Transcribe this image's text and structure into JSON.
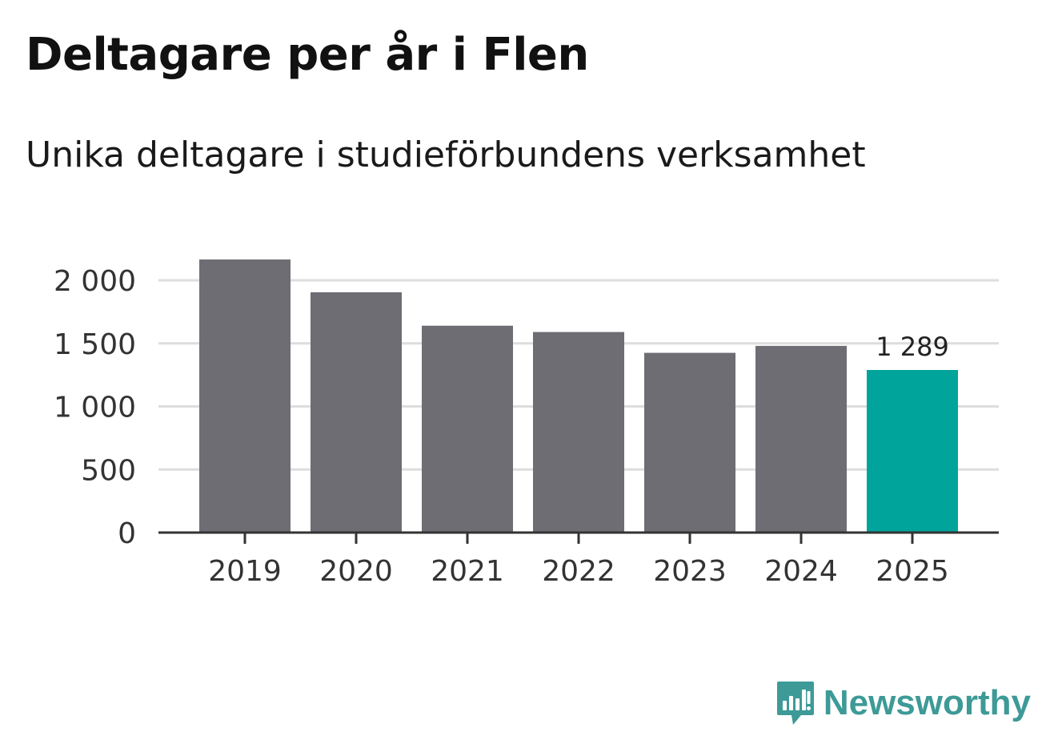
{
  "header": {
    "title": "Deltagare per år i Flen",
    "subtitle": "Unika deltagare i studieförbundens verksamhet"
  },
  "brand": {
    "name": "Newsworthy",
    "icon": "newsworthy-logo-icon"
  },
  "colors": {
    "bar_default": "#6e6d73",
    "bar_highlight": "#00a49b",
    "brand": "#3d9a97",
    "grid": "#dddddd",
    "axis": "#333333"
  },
  "chart_data": {
    "type": "bar",
    "title": "Deltagare per år i Flen",
    "subtitle": "Unika deltagare i studieförbundens verksamhet",
    "xlabel": "",
    "ylabel": "",
    "categories": [
      "2019",
      "2020",
      "2021",
      "2022",
      "2023",
      "2024",
      "2025"
    ],
    "values": [
      2165,
      1905,
      1640,
      1590,
      1425,
      1480,
      1289
    ],
    "highlight_index": 6,
    "ylim": [
      0,
      2000
    ],
    "yticks": [
      0,
      500,
      1000,
      1500,
      2000
    ],
    "ytick_labels": [
      "0",
      "500",
      "1 000",
      "1 500",
      "2 000"
    ],
    "grid": true,
    "annotations": [
      {
        "category": "2025",
        "text": "1 289"
      }
    ]
  }
}
